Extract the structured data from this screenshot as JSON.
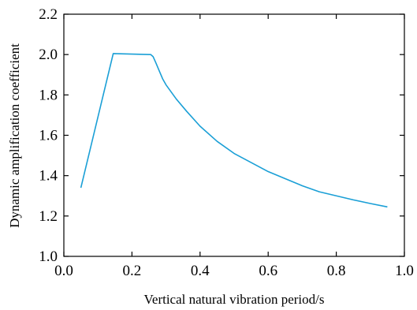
{
  "chart_data": {
    "type": "line",
    "xlabel": "Vertical natural vibration period/s",
    "ylabel": "Dynamic amplification coefficient",
    "xlim": [
      0.0,
      1.0
    ],
    "ylim": [
      1.0,
      2.2
    ],
    "xticks": [
      0.0,
      0.2,
      0.4,
      0.6,
      0.8,
      1.0
    ],
    "xtick_labels": [
      "0.0",
      "0.2",
      "0.4",
      "0.6",
      "0.8",
      "1.0"
    ],
    "yticks": [
      1.0,
      1.2,
      1.4,
      1.6,
      1.8,
      2.0,
      2.2
    ],
    "ytick_labels": [
      "1.0",
      "1.2",
      "1.4",
      "1.6",
      "1.8",
      "2.0",
      "2.2"
    ],
    "grid": false,
    "legend": "none",
    "series": [
      {
        "color": "#1a9fd6",
        "x": [
          0.05,
          0.145,
          0.255,
          0.262,
          0.27,
          0.28,
          0.29,
          0.3,
          0.33,
          0.36,
          0.4,
          0.45,
          0.5,
          0.55,
          0.6,
          0.65,
          0.7,
          0.75,
          0.8,
          0.85,
          0.9,
          0.95
        ],
        "y": [
          1.34,
          2.005,
          2.0,
          1.99,
          1.96,
          1.92,
          1.88,
          1.85,
          1.78,
          1.72,
          1.645,
          1.57,
          1.51,
          1.465,
          1.42,
          1.385,
          1.35,
          1.32,
          1.3,
          1.28,
          1.262,
          1.245
        ]
      }
    ]
  }
}
